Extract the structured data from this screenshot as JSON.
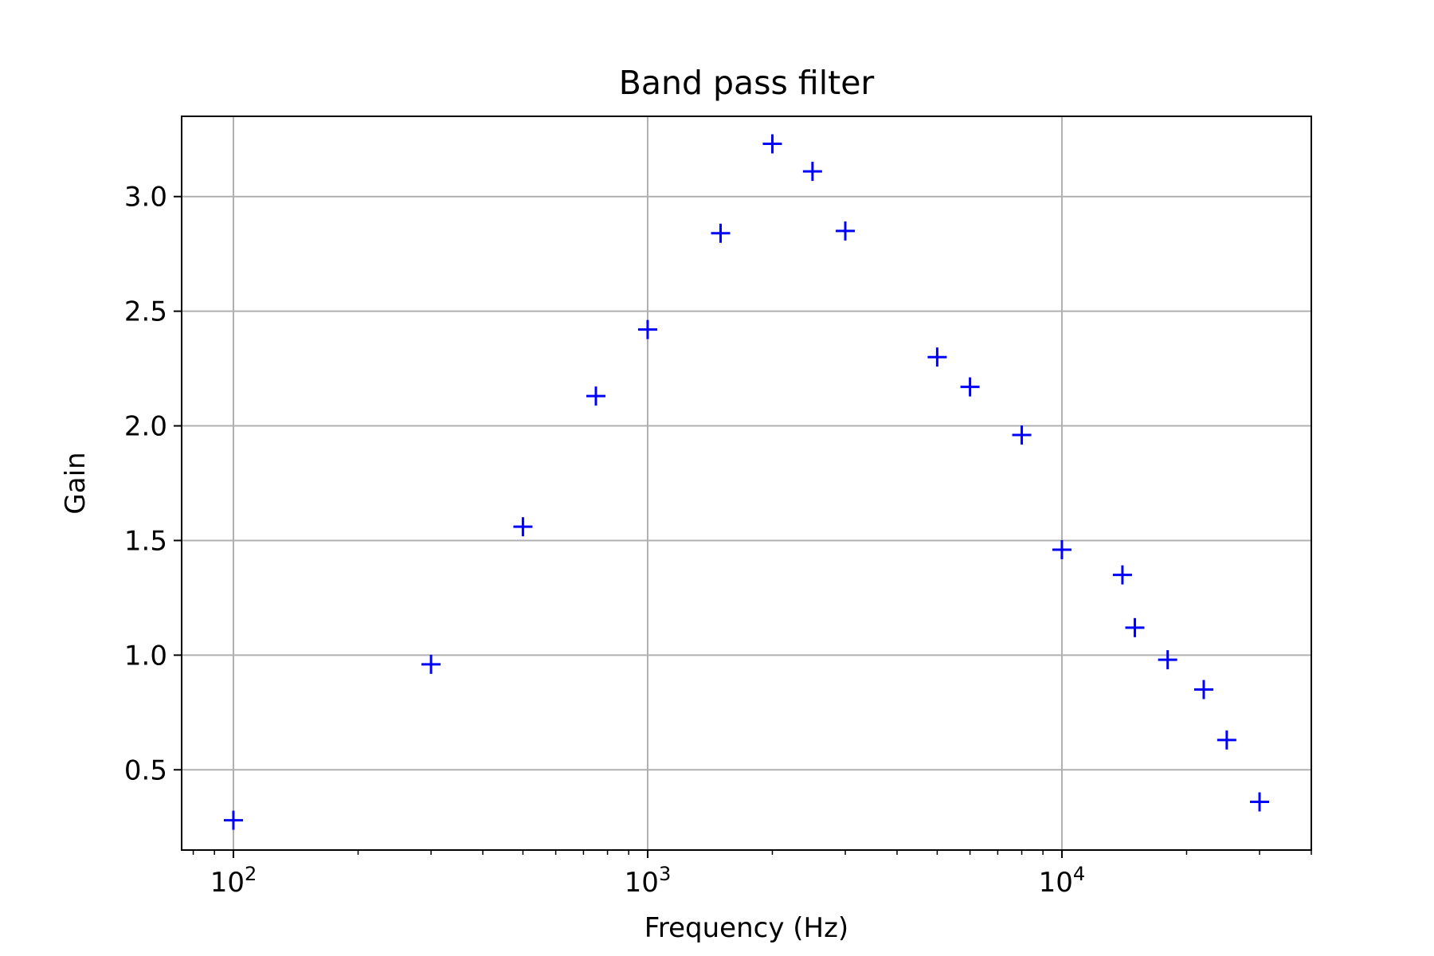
{
  "chart_data": {
    "type": "scatter",
    "title": "Band pass filter",
    "xlabel": "Frequency (Hz)",
    "ylabel": "Gain",
    "x_scale": "log",
    "xlim": [
      75,
      40000
    ],
    "ylim": [
      0.15,
      3.35
    ],
    "x_ticks": [
      {
        "value": 100,
        "base": "10",
        "exp": "2"
      },
      {
        "value": 1000,
        "base": "10",
        "exp": "3"
      },
      {
        "value": 10000,
        "base": "10",
        "exp": "4"
      }
    ],
    "y_ticks": [
      {
        "value": 0.5,
        "label": "0.5"
      },
      {
        "value": 1.0,
        "label": "1.0"
      },
      {
        "value": 1.5,
        "label": "1.5"
      },
      {
        "value": 2.0,
        "label": "2.0"
      },
      {
        "value": 2.5,
        "label": "2.5"
      },
      {
        "value": 3.0,
        "label": "3.0"
      }
    ],
    "grid": true,
    "marker": "+",
    "color": "#0000ff",
    "x": [
      100,
      300,
      500,
      750,
      1000,
      1500,
      2000,
      2500,
      3000,
      5000,
      6000,
      8000,
      10000,
      14000,
      15000,
      18000,
      22000,
      25000,
      30000
    ],
    "y": [
      0.28,
      0.96,
      1.56,
      2.13,
      2.42,
      2.84,
      3.23,
      3.11,
      2.85,
      2.3,
      2.17,
      1.96,
      1.46,
      1.35,
      1.12,
      0.98,
      0.85,
      0.63,
      0.36
    ]
  }
}
